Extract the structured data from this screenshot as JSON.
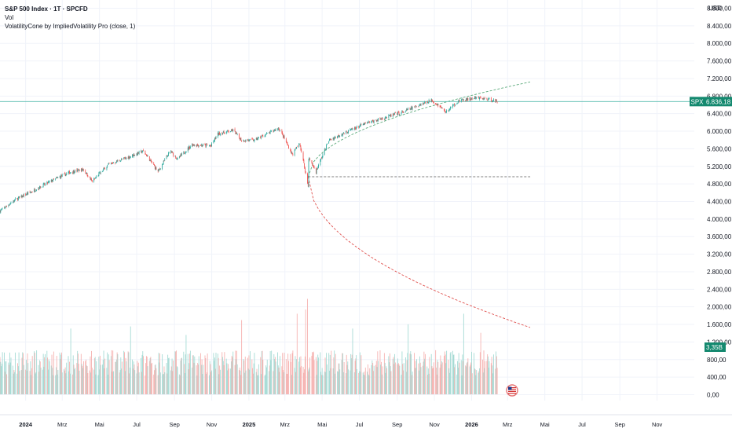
{
  "legend": {
    "title": "S&P 500 Index · 1T · SPCFD",
    "volume": "Vol",
    "indicator": "VolatilityCone by ImpliedVolatility Pro (close, 1)"
  },
  "currency": "USD",
  "colors": {
    "up": "#26a69a",
    "down": "#ef5350",
    "up_volume": "#a6dbd5",
    "down_volume": "#f6b3b1",
    "price_line": "#4fb8ac",
    "cone_upper": "#5aa97a",
    "cone_lower": "#e0524f",
    "horizontal": "#555555",
    "tag": "#14896f",
    "grid": "#f0f3fa"
  },
  "price_tag": {
    "symbol": "SPX",
    "value": "6.836,18"
  },
  "volume_tag": {
    "value": "3,35B"
  },
  "y_axis": {
    "labels": [
      "8.800,00",
      "8.400,00",
      "8.000,00",
      "7.600,00",
      "7.200,00",
      "6.800,00",
      "6.400,00",
      "6.000,00",
      "5.600,00",
      "5.200,00",
      "4.800,00",
      "4.400,00",
      "4.000,00",
      "3.600,00",
      "3.200,00",
      "2.800,00",
      "2.400,00",
      "2.000,00",
      "1.600,00",
      "1.200,00",
      "800,00",
      "400,00",
      "0,00"
    ]
  },
  "x_axis": {
    "labels": [
      {
        "text": "2024",
        "date": "2024-01-01",
        "bold": true
      },
      {
        "text": "Mrz",
        "date": "2024-03-01"
      },
      {
        "text": "Mai",
        "date": "2024-05-01"
      },
      {
        "text": "Jul",
        "date": "2024-07-01"
      },
      {
        "text": "Sep",
        "date": "2024-09-01"
      },
      {
        "text": "Nov",
        "date": "2024-11-01"
      },
      {
        "text": "2025",
        "date": "2025-01-01",
        "bold": true
      },
      {
        "text": "Mrz",
        "date": "2025-03-01"
      },
      {
        "text": "Mai",
        "date": "2025-05-01"
      },
      {
        "text": "Jul",
        "date": "2025-07-01"
      },
      {
        "text": "Sep",
        "date": "2025-09-01"
      },
      {
        "text": "Nov",
        "date": "2025-11-01"
      },
      {
        "text": "2026",
        "date": "2026-01-01",
        "bold": true
      },
      {
        "text": "Mrz",
        "date": "2026-03-01"
      },
      {
        "text": "Mai",
        "date": "2026-05-01"
      },
      {
        "text": "Jul",
        "date": "2026-07-01"
      },
      {
        "text": "Sep",
        "date": "2026-09-01"
      },
      {
        "text": "Nov",
        "date": "2026-11-01"
      }
    ]
  },
  "chart_data": {
    "type": "line",
    "title": "S&P 500 Index · 1T · SPCFD",
    "xlabel": "",
    "ylabel": "",
    "x_range": [
      "2023-11-20",
      "2027-01-01"
    ],
    "ylim": [
      2800,
      8800
    ],
    "log_scale": true,
    "grid": true,
    "last_price": 6836.18,
    "price_series": {
      "name": "S&P 500 Index",
      "points": [
        [
          "2023-11-20",
          4400
        ],
        [
          "2023-12-15",
          4600
        ],
        [
          "2024-01-10",
          4750
        ],
        [
          "2024-02-10",
          4950
        ],
        [
          "2024-03-15",
          5150
        ],
        [
          "2024-04-05",
          5200
        ],
        [
          "2024-04-19",
          4950
        ],
        [
          "2024-05-15",
          5300
        ],
        [
          "2024-06-15",
          5450
        ],
        [
          "2024-07-12",
          5600
        ],
        [
          "2024-08-05",
          5150
        ],
        [
          "2024-08-25",
          5600
        ],
        [
          "2024-09-06",
          5420
        ],
        [
          "2024-09-30",
          5750
        ],
        [
          "2024-10-31",
          5720
        ],
        [
          "2024-11-11",
          6000
        ],
        [
          "2024-12-06",
          6090
        ],
        [
          "2024-12-20",
          5850
        ],
        [
          "2025-01-10",
          5850
        ],
        [
          "2025-02-19",
          6140
        ],
        [
          "2025-03-13",
          5520
        ],
        [
          "2025-03-25",
          5780
        ],
        [
          "2025-04-08",
          4850
        ],
        [
          "2025-04-09",
          5450
        ],
        [
          "2025-04-21",
          5150
        ],
        [
          "2025-05-12",
          5850
        ],
        [
          "2025-06-10",
          6050
        ],
        [
          "2025-07-10",
          6250
        ],
        [
          "2025-08-10",
          6400
        ],
        [
          "2025-09-10",
          6550
        ],
        [
          "2025-10-08",
          6750
        ],
        [
          "2025-10-28",
          6880
        ],
        [
          "2025-11-20",
          6550
        ],
        [
          "2025-12-10",
          6850
        ],
        [
          "2026-01-10",
          6940
        ],
        [
          "2026-01-30",
          6900
        ],
        [
          "2026-02-12",
          6836.18
        ]
      ]
    },
    "volume_series": {
      "name": "Vol",
      "ylim": [
        0,
        2400
      ],
      "typical": 800,
      "spikes": [
        [
          "2024-03-15",
          1550
        ],
        [
          "2024-06-21",
          1600
        ],
        [
          "2024-09-20",
          1400
        ],
        [
          "2024-12-20",
          1750
        ],
        [
          "2025-03-21",
          1900
        ],
        [
          "2025-04-04",
          2000
        ],
        [
          "2025-04-07",
          2250
        ],
        [
          "2025-06-20",
          1550
        ],
        [
          "2025-09-19",
          1650
        ],
        [
          "2025-12-19",
          1900
        ],
        [
          "2026-01-16",
          1450
        ]
      ]
    },
    "volatility_cone": {
      "name": "VolatilityCone by ImpliedVolatility Pro (close, 1)",
      "anchor": [
        "2025-04-08",
        5050
      ],
      "end_date": "2026-04-07",
      "upper_end": 7400,
      "lower_end": 2750,
      "mid_level": 5050
    }
  }
}
